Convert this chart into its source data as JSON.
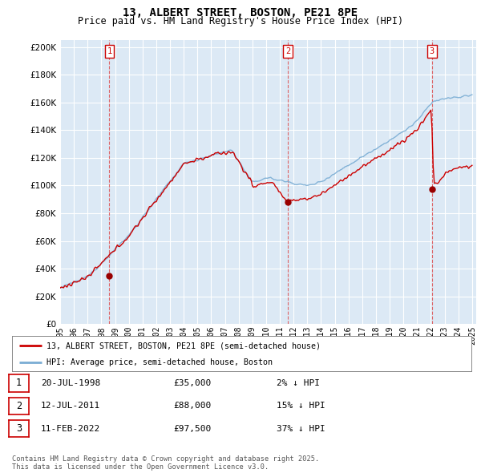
{
  "title": "13, ALBERT STREET, BOSTON, PE21 8PE",
  "subtitle": "Price paid vs. HM Land Registry's House Price Index (HPI)",
  "legend_property": "13, ALBERT STREET, BOSTON, PE21 8PE (semi-detached house)",
  "legend_hpi": "HPI: Average price, semi-detached house, Boston",
  "footnote": "Contains HM Land Registry data © Crown copyright and database right 2025.\nThis data is licensed under the Open Government Licence v3.0.",
  "sales": [
    {
      "num": 1,
      "date": "20-JUL-1998",
      "price": 35000,
      "price_str": "£35,000",
      "pct": "2% ↓ HPI"
    },
    {
      "num": 2,
      "date": "12-JUL-2011",
      "price": 88000,
      "price_str": "£88,000",
      "pct": "15% ↓ HPI"
    },
    {
      "num": 3,
      "date": "11-FEB-2022",
      "price": 97500,
      "price_str": "£97,500",
      "pct": "37% ↓ HPI"
    }
  ],
  "yticks": [
    0,
    20000,
    40000,
    60000,
    80000,
    100000,
    120000,
    140000,
    160000,
    180000,
    200000
  ],
  "background_color": "#ffffff",
  "plot_bg": "#dce9f5",
  "line_color_property": "#cc0000",
  "line_color_hpi": "#7aadd4",
  "grid_color": "#ffffff",
  "sale_dot_color": "#990000",
  "vline_color": "#dd4444"
}
